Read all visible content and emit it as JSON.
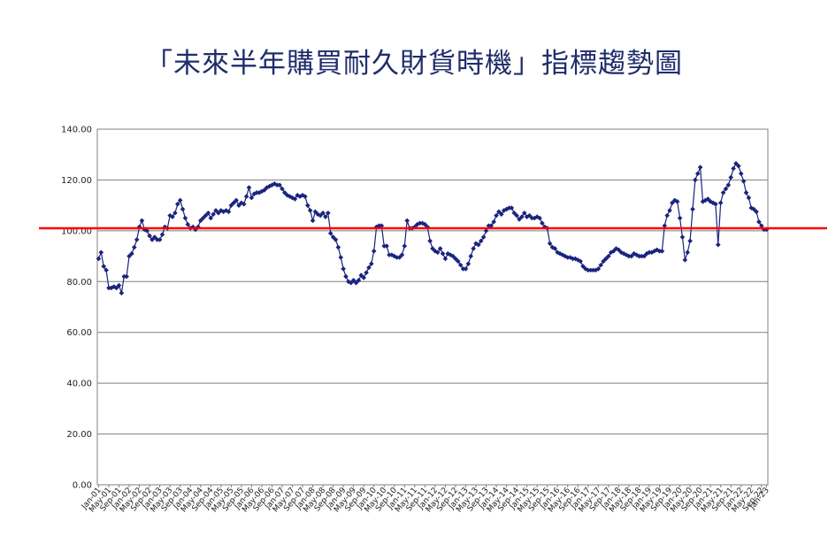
{
  "title": "「未來半年購買耐久財貨時機」指標趨勢圖",
  "chart_data": {
    "type": "line",
    "title": "「未來半年購買耐久財貨時機」指標趨勢圖",
    "xlabel": "",
    "ylabel": "",
    "ylim": [
      0,
      140
    ],
    "yticks": [
      "0.00",
      "20.00",
      "40.00",
      "60.00",
      "80.00",
      "100.00",
      "120.00",
      "140.00"
    ],
    "grid": true,
    "reference_line": {
      "value": 101,
      "color": "#ff0000"
    },
    "series_color": "#1a237e",
    "x_tick_labels": [
      "Jan-01",
      "May-01",
      "Sep-01",
      "Jan-02",
      "May-02",
      "Sep-02",
      "Jan-03",
      "May-03",
      "Sep-03",
      "Jan-04",
      "May-04",
      "Sep-04",
      "Jan-05",
      "May-05",
      "Sep-05",
      "Jan-06",
      "May-06",
      "Sep-06",
      "Jan-07",
      "May-07",
      "Sep-07",
      "Jan-08",
      "May-08",
      "Sep-08",
      "Jan-09",
      "May-09",
      "Sep-09",
      "Jan-10",
      "May-10",
      "Sep-10",
      "Jan-11",
      "May-11",
      "Sep-11",
      "Jan-12",
      "May-12",
      "Sep-12",
      "Jan-13",
      "May-13",
      "Sep-13",
      "Jan-14",
      "May-14",
      "Sep-14",
      "Jan-15",
      "May-15",
      "Sep-15",
      "Jan-16",
      "May-16",
      "Sep-16",
      "Jan-17",
      "May-17",
      "Sep-17",
      "Jan-18",
      "May-18",
      "Sep-18",
      "Jan-19",
      "May-19",
      "Sep-19",
      "Jan-20",
      "May-20",
      "Sep-20",
      "Jan-21",
      "May-21",
      "Sep-21",
      "Jan-22",
      "May-22",
      "Sep-22",
      "Jan-23"
    ],
    "series": [
      {
        "x_start": "Jan-01",
        "frequency": "monthly",
        "values": [
          89,
          91.5,
          86,
          84.5,
          77.5,
          77.5,
          78,
          77.5,
          78.5,
          75.5,
          82,
          82,
          90,
          91,
          93.5,
          96.5,
          101.5,
          104,
          100.5,
          100,
          98,
          96.5,
          97.5,
          96.5,
          96.5,
          98.5,
          101.5,
          101,
          106,
          105.5,
          107,
          110.5,
          112,
          108.5,
          105,
          102.5,
          101,
          101.5,
          100.5,
          101.5,
          104,
          105,
          106,
          107,
          105,
          106.5,
          108,
          107,
          108,
          107.5,
          108,
          107.5,
          110,
          111,
          112,
          110,
          111,
          110.5,
          113.5,
          117,
          113,
          114.5,
          115,
          115,
          115.5,
          116,
          117,
          117.5,
          118,
          118.5,
          118,
          118,
          116.5,
          115,
          114,
          113.5,
          113,
          112.5,
          114,
          113.5,
          114,
          113.5,
          110,
          108,
          104,
          107.5,
          106.5,
          106,
          107,
          105.5,
          107,
          99,
          97.5,
          96.5,
          93.5,
          89.5,
          85,
          82,
          80,
          79.5,
          80.5,
          79.5,
          80.5,
          82.5,
          81.5,
          83.5,
          85.5,
          87,
          92,
          101.5,
          102,
          102,
          94,
          94,
          90.5,
          90.5,
          90,
          89.5,
          89.5,
          90.5,
          94,
          104,
          101,
          101,
          101.5,
          102.5,
          103,
          103,
          102.5,
          101.5,
          96,
          93,
          92,
          91.5,
          93,
          91,
          89,
          91,
          90.5,
          90,
          89,
          88,
          86.5,
          85,
          85,
          87,
          90,
          93,
          95,
          94.5,
          96,
          97.5,
          100,
          102,
          102,
          103.5,
          106,
          107.5,
          106.5,
          108,
          108.5,
          109,
          109,
          107,
          106,
          104.5,
          105.5,
          107,
          105.5,
          106,
          105,
          105,
          105.5,
          105,
          103,
          101.5,
          101,
          95,
          93.5,
          93,
          91.5,
          91,
          90.5,
          90,
          89.5,
          89.5,
          89,
          89,
          88.5,
          88,
          86,
          85,
          84.5,
          84.5,
          84.5,
          84.5,
          85,
          86.5,
          88,
          89,
          90,
          91.5,
          92,
          93,
          92.5,
          91.5,
          91,
          90.5,
          90,
          90,
          91,
          90.5,
          90,
          90,
          90,
          91,
          91.5,
          91.5,
          92,
          92.5,
          92,
          92,
          102,
          106,
          108,
          111,
          112,
          111.5,
          105,
          97.5,
          88.5,
          91.5,
          96,
          108.5,
          120,
          122.5,
          125,
          111.5,
          112,
          112.5,
          111.5,
          111,
          110.5,
          94.5,
          111,
          115,
          116.5,
          118,
          121,
          124.5,
          126.5,
          125.5,
          122.5,
          119.5,
          115,
          113,
          109,
          108.5,
          107.5,
          103.5,
          102,
          100.5,
          100.5
        ]
      }
    ]
  }
}
